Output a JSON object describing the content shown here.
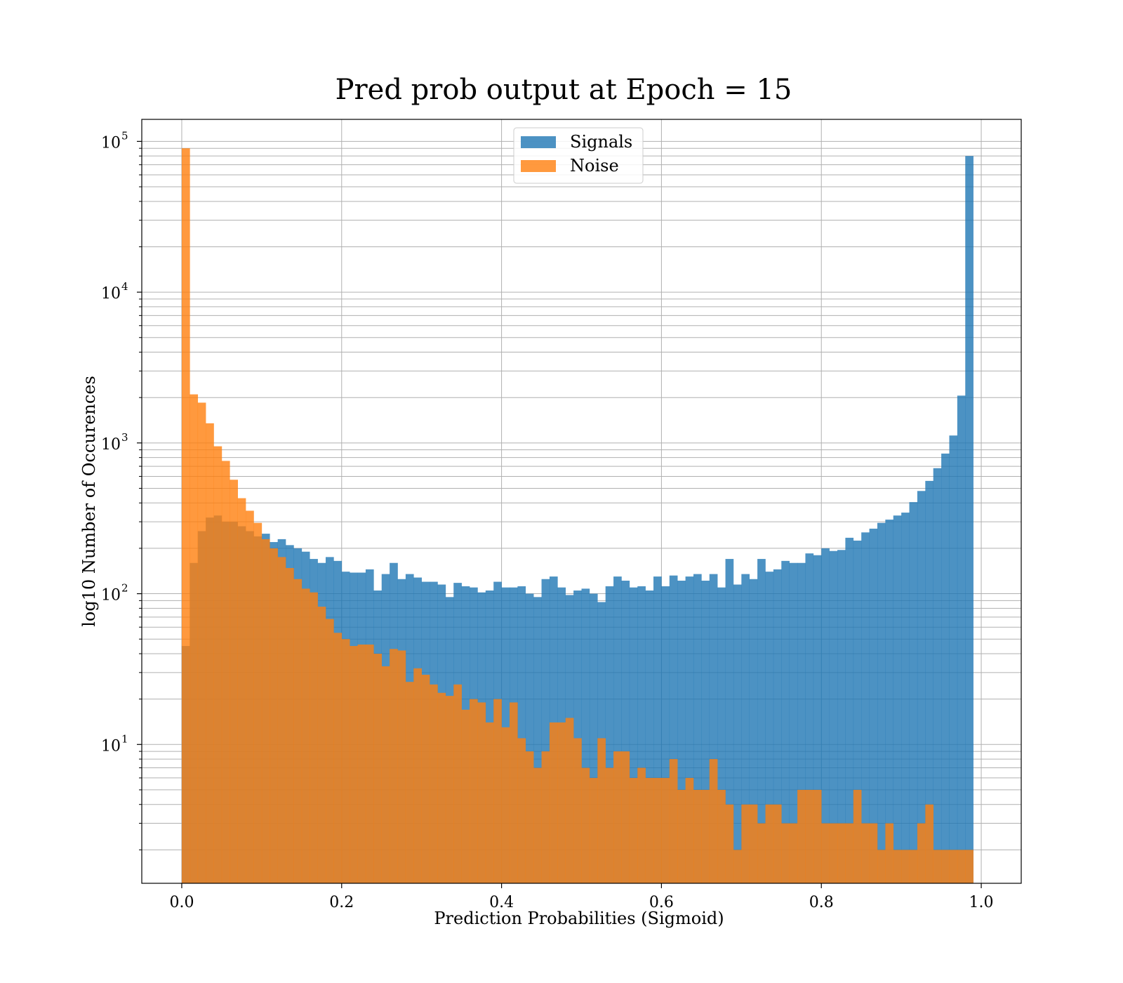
{
  "chart_data": {
    "type": "bar",
    "title": "Pred prob output at Epoch = 15",
    "xlabel": "Prediction Probabilities (Sigmoid)",
    "ylabel": "log10 Number of Occurences",
    "x_scale": "linear",
    "y_scale": "log",
    "xlim": [
      -0.05,
      1.05
    ],
    "ylim": [
      1.2,
      140000
    ],
    "x_ticks": [
      0.0,
      0.2,
      0.4,
      0.6,
      0.8,
      1.0
    ],
    "x_tick_labels": [
      "0.0",
      "0.2",
      "0.4",
      "0.6",
      "0.8",
      "1.0"
    ],
    "y_ticks": [
      {
        "value": 10,
        "base": "10",
        "exp": "1"
      },
      {
        "value": 100,
        "base": "10",
        "exp": "2"
      },
      {
        "value": 1000,
        "base": "10",
        "exp": "3"
      },
      {
        "value": 10000,
        "base": "10",
        "exp": "4"
      },
      {
        "value": 100000,
        "base": "10",
        "exp": "5"
      }
    ],
    "grid": true,
    "legend_position": "top-center",
    "histogram_range": [
      0.0,
      1.0
    ],
    "bins": 100,
    "series": [
      {
        "name": "Signals",
        "color": "#1f77b4",
        "alpha": 0.8,
        "values": [
          45,
          160,
          260,
          320,
          330,
          300,
          300,
          280,
          260,
          240,
          250,
          220,
          230,
          210,
          200,
          190,
          170,
          160,
          175,
          165,
          140,
          138,
          138,
          145,
          105,
          135,
          160,
          125,
          135,
          128,
          120,
          120,
          115,
          95,
          118,
          112,
          110,
          102,
          105,
          120,
          110,
          110,
          112,
          100,
          95,
          125,
          130,
          110,
          98,
          105,
          108,
          100,
          88,
          112,
          130,
          122,
          110,
          112,
          105,
          130,
          112,
          132,
          122,
          130,
          135,
          122,
          135,
          110,
          170,
          115,
          135,
          125,
          170,
          140,
          145,
          165,
          160,
          160,
          185,
          180,
          200,
          192,
          195,
          235,
          225,
          255,
          270,
          295,
          310,
          330,
          345,
          405,
          480,
          560,
          680,
          850,
          1120,
          2060,
          80000,
          0
        ]
      },
      {
        "name": "Noise",
        "color": "#ff7f0e",
        "alpha": 0.8,
        "values": [
          90000,
          2100,
          1850,
          1350,
          950,
          760,
          570,
          430,
          355,
          295,
          230,
          200,
          175,
          148,
          125,
          108,
          102,
          82,
          68,
          55,
          50,
          45,
          46,
          46,
          40,
          33,
          43,
          42,
          26,
          32,
          29,
          25,
          22,
          21,
          25,
          17,
          20,
          19,
          14,
          20,
          13,
          19,
          11,
          9,
          7,
          9,
          14,
          14,
          15,
          11,
          7,
          6,
          11,
          7,
          9,
          9,
          6,
          7,
          6,
          6,
          6,
          8,
          5,
          6,
          5,
          5,
          8,
          5,
          4,
          2,
          4,
          4,
          3,
          4,
          4,
          3,
          3,
          5,
          5,
          5,
          3,
          3,
          3,
          3,
          5,
          3,
          3,
          2,
          3,
          2,
          2,
          2,
          3,
          4,
          2,
          2,
          2,
          2,
          2,
          0
        ]
      }
    ]
  }
}
